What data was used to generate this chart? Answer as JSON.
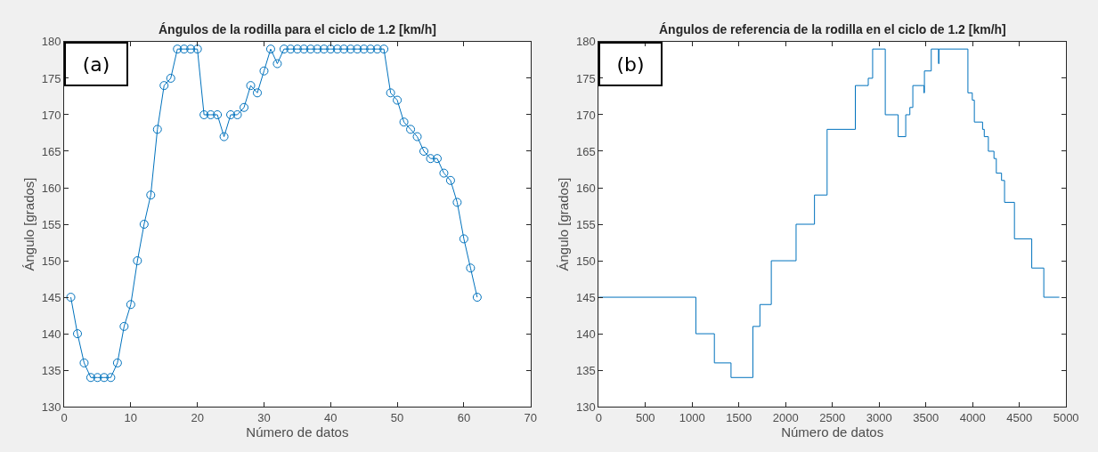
{
  "chart_data": [
    {
      "type": "line",
      "title": "Ángulos de la rodilla para el ciclo de 1.2 [km/h]",
      "xlabel": "Número de datos",
      "ylabel": "Ángulo [grados]",
      "annotations": [
        "(a)"
      ],
      "marker": "circle",
      "x": [
        1,
        2,
        3,
        4,
        5,
        6,
        7,
        8,
        9,
        10,
        11,
        12,
        13,
        14,
        15,
        16,
        17,
        18,
        19,
        20,
        21,
        22,
        23,
        24,
        25,
        26,
        27,
        28,
        29,
        30,
        31,
        32,
        33,
        34,
        35,
        36,
        37,
        38,
        39,
        40,
        41,
        42,
        43,
        44,
        45,
        46,
        47,
        48,
        49,
        50,
        51,
        52,
        53,
        54,
        55,
        56,
        57,
        58,
        59,
        60,
        61,
        62
      ],
      "series": [
        {
          "color": "#0072bd",
          "values": [
            145,
            140,
            136,
            134,
            134,
            134,
            134,
            136,
            141,
            144,
            150,
            155,
            159,
            168,
            174,
            175,
            179,
            179,
            179,
            179,
            170,
            170,
            170,
            167,
            170,
            170,
            171,
            174,
            173,
            176,
            179,
            177,
            179,
            179,
            179,
            179,
            179,
            179,
            179,
            179,
            179,
            179,
            179,
            179,
            179,
            179,
            179,
            179,
            173,
            172,
            169,
            168,
            167,
            165,
            164,
            164,
            162,
            161,
            158,
            153,
            149,
            145
          ]
        }
      ],
      "xlim": [
        0,
        70
      ],
      "xticks": [
        0,
        10,
        20,
        30,
        40,
        50,
        60,
        70
      ],
      "ylim": [
        130,
        180
      ],
      "yticks": [
        130,
        135,
        140,
        145,
        150,
        155,
        160,
        165,
        170,
        175,
        180
      ]
    },
    {
      "type": "step",
      "title": "Ángulos de referencia de la rodilla en el ciclo de 1.2 [km/h]",
      "xlabel": "Número de datos",
      "ylabel": "Ángulo [grados]",
      "annotations": [
        "(b)"
      ],
      "marker": "none",
      "x": [
        0,
        1040,
        1238,
        1416,
        1650,
        1725,
        1847,
        2112,
        2309,
        2444,
        2746,
        2884,
        2931,
        3066,
        3204,
        3285,
        3329,
        3361,
        3480,
        3485,
        3558,
        3636,
        3640,
        3950,
        3997,
        4019,
        4107,
        4125,
        4169,
        4229,
        4254,
        4310,
        4342,
        4448,
        4633,
        4762,
        4928
      ],
      "series": [
        {
          "color": "#0072bd",
          "values": [
            145,
            140,
            136,
            134,
            141,
            144,
            150,
            155,
            159,
            168,
            174,
            175,
            179,
            170,
            167,
            170,
            171,
            174,
            173,
            176,
            179,
            177,
            179,
            173,
            172,
            169,
            168,
            167,
            165,
            164,
            162,
            161,
            158,
            153,
            149,
            145,
            145
          ]
        }
      ],
      "xlim": [
        0,
        5000
      ],
      "xticks": [
        0,
        500,
        1000,
        1500,
        2000,
        2500,
        3000,
        3500,
        4000,
        4500,
        5000
      ],
      "ylim": [
        130,
        180
      ],
      "yticks": [
        130,
        135,
        140,
        145,
        150,
        155,
        160,
        165,
        170,
        175,
        180
      ]
    }
  ]
}
